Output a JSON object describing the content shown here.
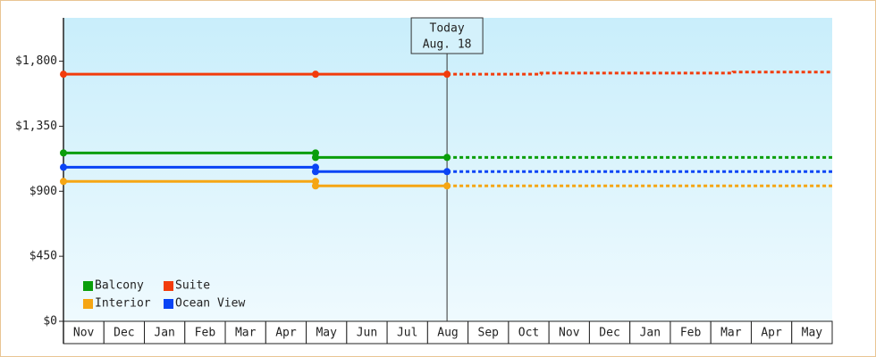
{
  "chart_data": {
    "type": "line",
    "categories": [
      "Nov",
      "Dec",
      "Jan",
      "Feb",
      "Mar",
      "Apr",
      "May",
      "Jun",
      "Jul",
      "Aug",
      "Sep",
      "Oct",
      "Nov",
      "Dec",
      "Jan",
      "Feb",
      "Mar",
      "Apr",
      "May"
    ],
    "xlim": [
      0,
      19
    ],
    "ylim": [
      0,
      2100
    ],
    "yticks": [
      {
        "value": 0,
        "label": "$0"
      },
      {
        "value": 450,
        "label": "$450"
      },
      {
        "value": 900,
        "label": "$900"
      },
      {
        "value": 1350,
        "label": "$1,350"
      },
      {
        "value": 1800,
        "label": "$1,800"
      }
    ],
    "annotation": {
      "x": 9.48,
      "lines": [
        "Today",
        "Aug. 18"
      ]
    },
    "series": [
      {
        "name": "Balcony",
        "color": "#0a9e0a",
        "x": [
          0,
          6.23,
          6.23,
          9.48
        ],
        "values": [
          1165,
          1165,
          1134,
          1134
        ],
        "forecast": {
          "x": [
            9.48,
            19
          ],
          "values": [
            1134,
            1134
          ]
        }
      },
      {
        "name": "Suite",
        "color": "#f23c0c",
        "x": [
          0,
          6.23,
          9.48
        ],
        "values": [
          1710,
          1710,
          1710
        ],
        "forecast": {
          "x": [
            9.48,
            11.8,
            11.8,
            16.55,
            16.55,
            19
          ],
          "values": [
            1710,
            1710,
            1718,
            1718,
            1725,
            1725
          ]
        }
      },
      {
        "name": "Interior",
        "color": "#f5a614",
        "x": [
          0,
          6.23,
          6.23,
          9.48
        ],
        "values": [
          968,
          968,
          937,
          937
        ],
        "forecast": {
          "x": [
            9.48,
            19
          ],
          "values": [
            937,
            937
          ]
        }
      },
      {
        "name": "Ocean View",
        "color": "#0a44f5",
        "x": [
          0,
          6.23,
          6.23,
          9.48
        ],
        "values": [
          1066,
          1066,
          1036,
          1036
        ],
        "forecast": {
          "x": [
            9.48,
            19
          ],
          "values": [
            1036,
            1036
          ]
        }
      }
    ]
  }
}
